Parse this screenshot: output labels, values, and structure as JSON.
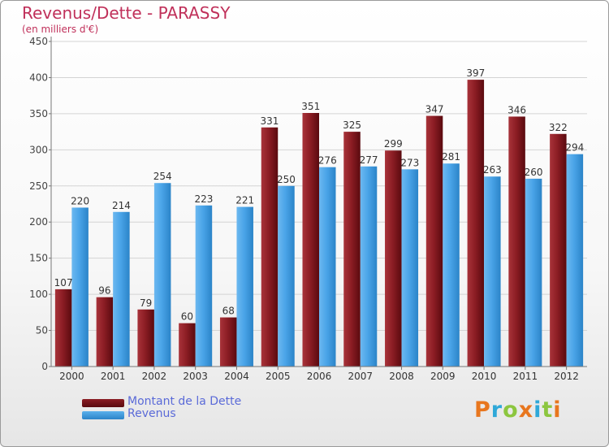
{
  "title": "Revenus/Dette - PARASSY",
  "subtitle": "(en milliers d'€)",
  "chart_data": {
    "type": "bar",
    "categories": [
      "2000",
      "2001",
      "2002",
      "2003",
      "2004",
      "2005",
      "2006",
      "2007",
      "2008",
      "2009",
      "2010",
      "2011",
      "2012"
    ],
    "series": [
      {
        "name": "Montant de la Dette",
        "values": [
          107,
          96,
          79,
          60,
          68,
          331,
          351,
          325,
          299,
          347,
          397,
          346,
          322
        ],
        "color": "#7a0f16"
      },
      {
        "name": "Revenus",
        "values": [
          220,
          214,
          254,
          223,
          221,
          250,
          276,
          277,
          273,
          281,
          263,
          260,
          294
        ],
        "color": "#3d9ae0"
      }
    ],
    "ylim": [
      0,
      450
    ],
    "yticks": [
      0,
      50,
      100,
      150,
      200,
      250,
      300,
      350,
      400,
      450
    ],
    "grid": true,
    "legend": "bottom-left"
  },
  "legend": {
    "debt_label": "Montant de la Dette",
    "revenue_label": "Revenus"
  },
  "logo": {
    "text": "Proxiti",
    "colors": [
      "#e8761e",
      "#2fa8d8",
      "#8cc63f",
      "#e8761e",
      "#2fa8d8",
      "#8cc63f",
      "#e8761e"
    ]
  }
}
